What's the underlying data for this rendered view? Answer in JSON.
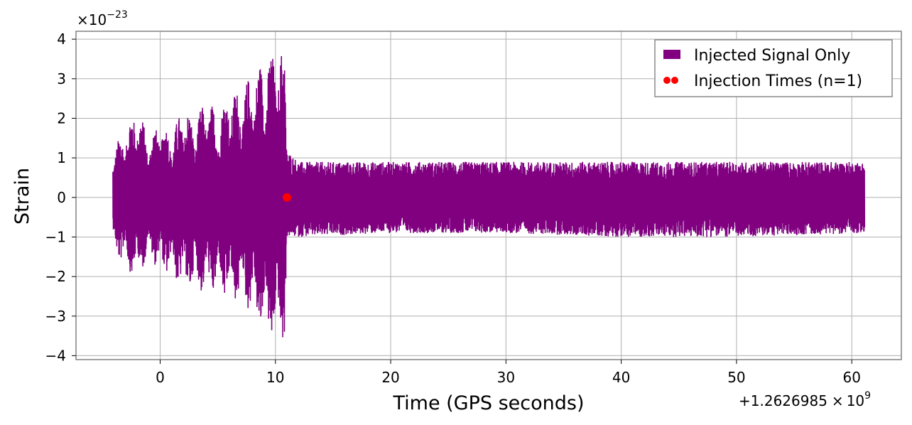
{
  "chart_data": {
    "type": "line",
    "title": "",
    "xlabel": "Time (GPS seconds)",
    "ylabel": "Strain",
    "x_offset_label": "+1.2626985",
    "x_offset_times": "×",
    "x_offset_power": "10",
    "x_offset_exponent": "9",
    "y_scale_prefix": "×",
    "y_scale_power": "10",
    "y_scale_exponent": "−23",
    "xlim": [
      -7.3,
      64.3
    ],
    "ylim": [
      -4.1,
      4.2
    ],
    "xticks": [
      0,
      10,
      20,
      30,
      40,
      50,
      60
    ],
    "xtick_labels": [
      "0",
      "10",
      "20",
      "30",
      "40",
      "50",
      "60"
    ],
    "yticks": [
      4,
      3,
      2,
      1,
      0,
      -1,
      -2,
      -3,
      -4
    ],
    "ytick_labels": [
      "4",
      "3",
      "2",
      "1",
      "0",
      "−1",
      "−2",
      "−3",
      "−4"
    ],
    "grid": true,
    "legend_position": "top-right",
    "series": [
      {
        "name": "Injected Signal Only",
        "kind": "filled-line",
        "color": "#800080",
        "x_range": [
          -4.1,
          61.1
        ],
        "envelope": {
          "t": [
            -4.0,
            -3.0,
            -2.0,
            -1.0,
            0.0,
            1.0,
            2.0,
            3.0,
            4.0,
            5.0,
            6.0,
            7.0,
            8.0,
            9.0,
            10.0,
            10.8,
            11.0,
            12.0,
            20.0,
            30.0,
            40.0,
            50.0,
            61.0
          ],
          "upper": [
            1.3,
            1.8,
            2.4,
            1.5,
            2.0,
            1.6,
            2.4,
            1.9,
            2.6,
            2.1,
            2.8,
            2.7,
            3.2,
            3.5,
            3.8,
            3.8,
            1.2,
            0.9,
            0.9,
            0.9,
            0.9,
            0.9,
            0.9
          ],
          "lower": [
            -1.4,
            -1.8,
            -2.1,
            -1.5,
            -1.9,
            -2.0,
            -2.4,
            -2.3,
            -2.5,
            -2.4,
            -2.7,
            -2.6,
            -3.0,
            -3.5,
            -3.7,
            -3.7,
            -1.0,
            -1.0,
            -0.9,
            -0.9,
            -1.0,
            -1.0,
            -0.9
          ]
        }
      },
      {
        "name": "Injection Times (n=1)",
        "kind": "scatter",
        "color": "#ff0000",
        "points": [
          {
            "x": 11.0,
            "y": 0.0
          }
        ]
      }
    ]
  }
}
